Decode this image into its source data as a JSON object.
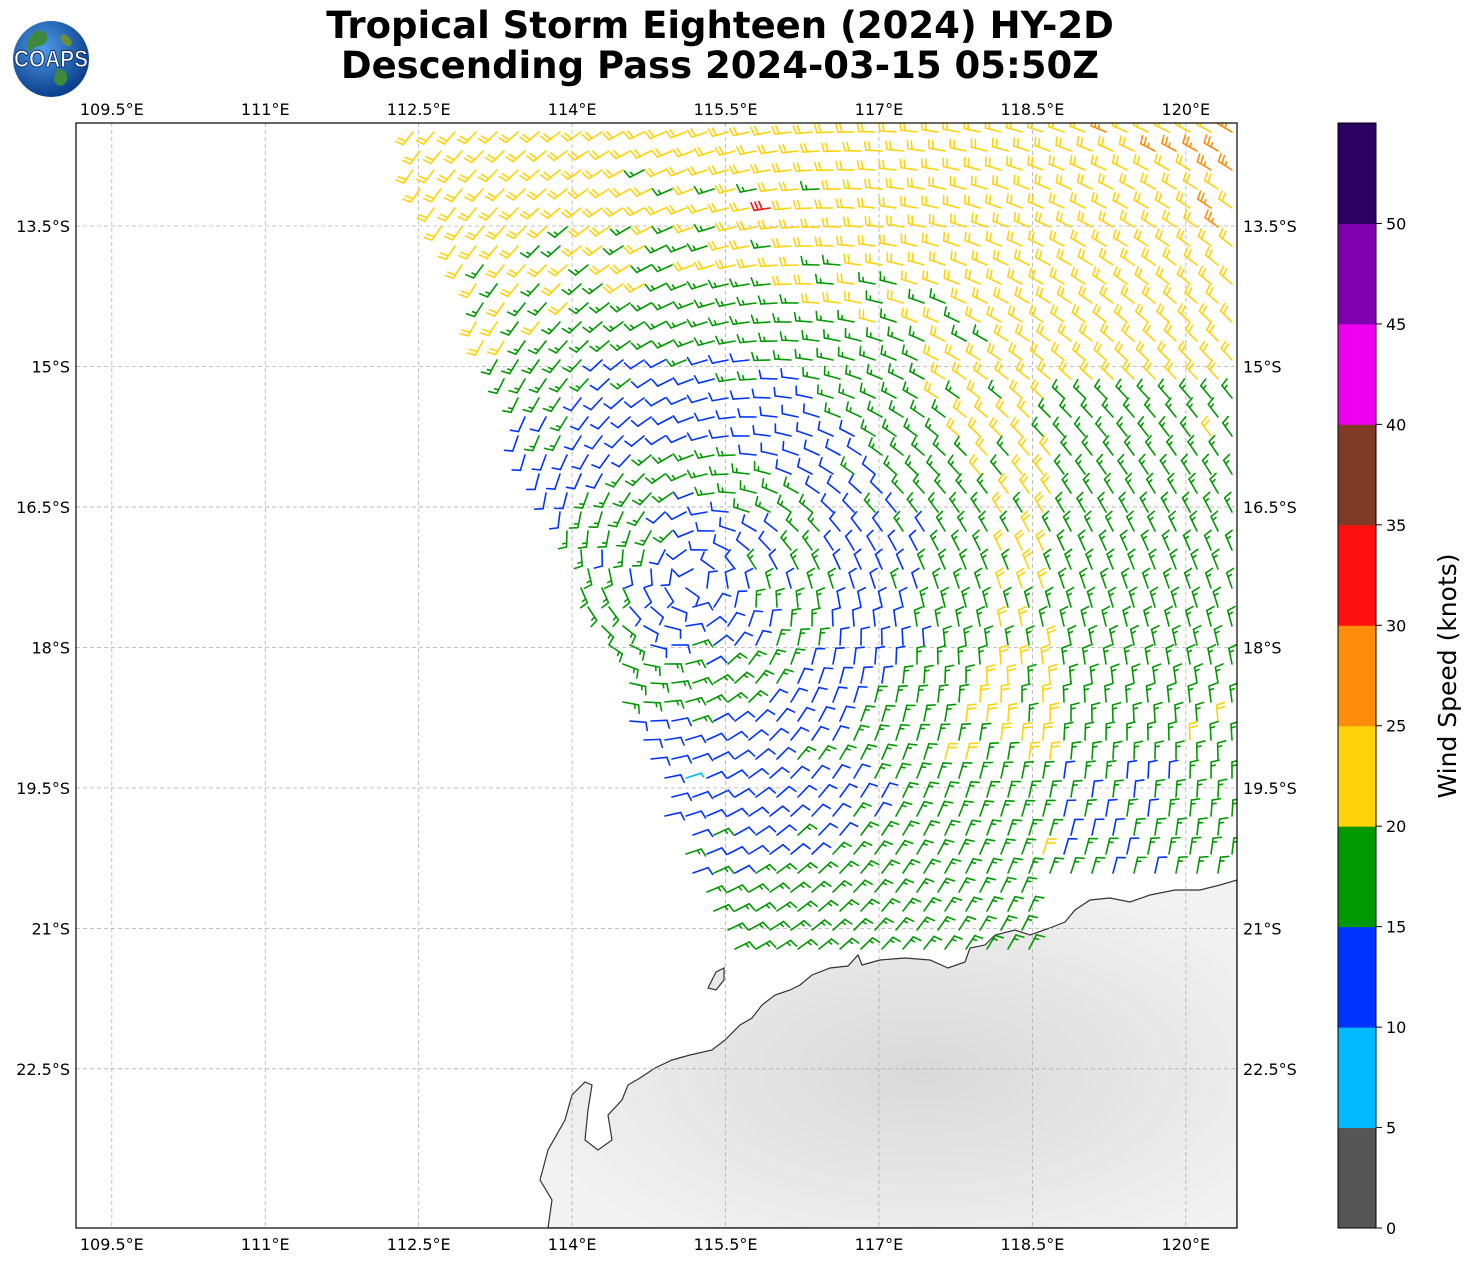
{
  "title": {
    "line1": "Tropical Storm Eighteen (2024) HY-2D",
    "line2": "Descending Pass 2024-03-15 05:50Z"
  },
  "logo": {
    "text": "COAPS",
    "icon": "globe-icon"
  },
  "map": {
    "lon_ticks": [
      "109.5°E",
      "111°E",
      "112.5°E",
      "114°E",
      "115.5°E",
      "117°E",
      "118.5°E",
      "120°E"
    ],
    "lat_ticks": [
      "13.5°S",
      "15°S",
      "16.5°S",
      "18°S",
      "19.5°S",
      "21°S",
      "22.5°S"
    ],
    "lon_range": [
      109.15,
      120.5
    ],
    "lat_range": [
      -24.2,
      -12.4
    ],
    "lon_values": [
      109.5,
      111,
      112.5,
      114,
      115.5,
      117,
      118.5,
      120
    ],
    "lat_values": [
      -13.5,
      -15,
      -16.5,
      -18,
      -19.5,
      -21,
      -22.5
    ],
    "grid": true,
    "storm_center": {
      "lon": 115.2,
      "lat": -17.3
    },
    "barb_colors_note_free": true
  },
  "colorbar": {
    "label": "Wind Speed (knots)",
    "ticks": [
      "0",
      "5",
      "10",
      "15",
      "20",
      "25",
      "30",
      "35",
      "40",
      "45",
      "50"
    ],
    "colors": [
      "#555555",
      "#00bbff",
      "#0033ff",
      "#009900",
      "#ffd20a",
      "#ff8c0a",
      "#ff1010",
      "#803a28",
      "#ee00ee",
      "#8000b0",
      "#2a0060"
    ]
  }
}
